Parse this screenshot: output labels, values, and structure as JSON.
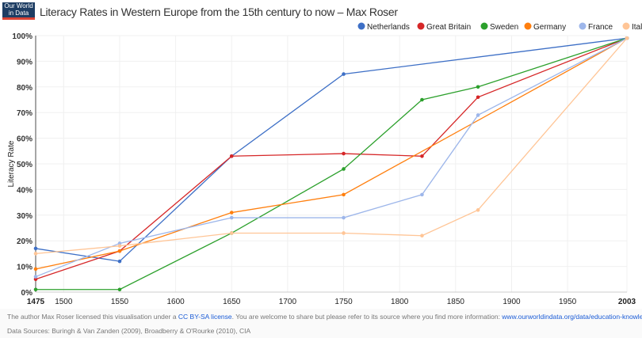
{
  "header": {
    "logo_text": "Our World in Data",
    "title": "Literacy Rates in Western Europe from the 15th century to now – Max Roser"
  },
  "footer": {
    "license_prefix": "The author Max Roser licensed this visualisation under a ",
    "license_link": "CC BY-SA license",
    "license_suffix": ". You are welcome to share but please refer to its source where you find more information: ",
    "source_link": "www.ourworldindata.org/data/education-knowledge/literacy",
    "sources": "Data Sources: Buringh & Van Zanden (2009), Broadberry & O'Rourke (2010), CIA"
  },
  "chart_data": {
    "type": "line",
    "title": "Literacy Rates in Western Europe from the 15th century to now – Max Roser",
    "xlabel": "",
    "ylabel": "Literacy Rate",
    "xlim": [
      1475,
      2003
    ],
    "ylim": [
      0,
      100
    ],
    "xticks": [
      "1475",
      "1500",
      "1550",
      "1600",
      "1650",
      "1700",
      "1750",
      "1800",
      "1850",
      "1900",
      "1950",
      "2003"
    ],
    "yticks": [
      "0%",
      "10%",
      "20%",
      "30%",
      "40%",
      "50%",
      "60%",
      "70%",
      "80%",
      "90%",
      "100%"
    ],
    "grid": true,
    "legend": "top-right",
    "series": [
      {
        "name": "Netherlands",
        "color": "#3d6fc6",
        "points": [
          [
            1475,
            17
          ],
          [
            1550,
            12
          ],
          [
            1650,
            53
          ],
          [
            1750,
            85
          ],
          [
            2003,
            99
          ]
        ]
      },
      {
        "name": "Great Britain",
        "color": "#d62728",
        "points": [
          [
            1475,
            5
          ],
          [
            1550,
            16
          ],
          [
            1650,
            53
          ],
          [
            1750,
            54
          ],
          [
            1820,
            53
          ],
          [
            1870,
            76
          ],
          [
            2003,
            99
          ]
        ]
      },
      {
        "name": "Sweden",
        "color": "#2ca02c",
        "points": [
          [
            1475,
            1
          ],
          [
            1550,
            1
          ],
          [
            1650,
            23
          ],
          [
            1750,
            48
          ],
          [
            1820,
            75
          ],
          [
            1870,
            80
          ],
          [
            2003,
            99
          ]
        ]
      },
      {
        "name": "Germany",
        "color": "#ff7f0e",
        "points": [
          [
            1475,
            9
          ],
          [
            1550,
            16
          ],
          [
            1650,
            31
          ],
          [
            1750,
            38
          ],
          [
            2003,
            99
          ]
        ]
      },
      {
        "name": "France",
        "color": "#9db6ea",
        "points": [
          [
            1475,
            6
          ],
          [
            1550,
            19
          ],
          [
            1650,
            29
          ],
          [
            1750,
            29
          ],
          [
            1820,
            38
          ],
          [
            1870,
            69
          ],
          [
            2003,
            99
          ]
        ]
      },
      {
        "name": "Italy",
        "color": "#ffc596",
        "points": [
          [
            1475,
            15
          ],
          [
            1550,
            18
          ],
          [
            1650,
            23
          ],
          [
            1750,
            23
          ],
          [
            1820,
            22
          ],
          [
            1870,
            32
          ],
          [
            2003,
            99
          ]
        ]
      }
    ]
  }
}
